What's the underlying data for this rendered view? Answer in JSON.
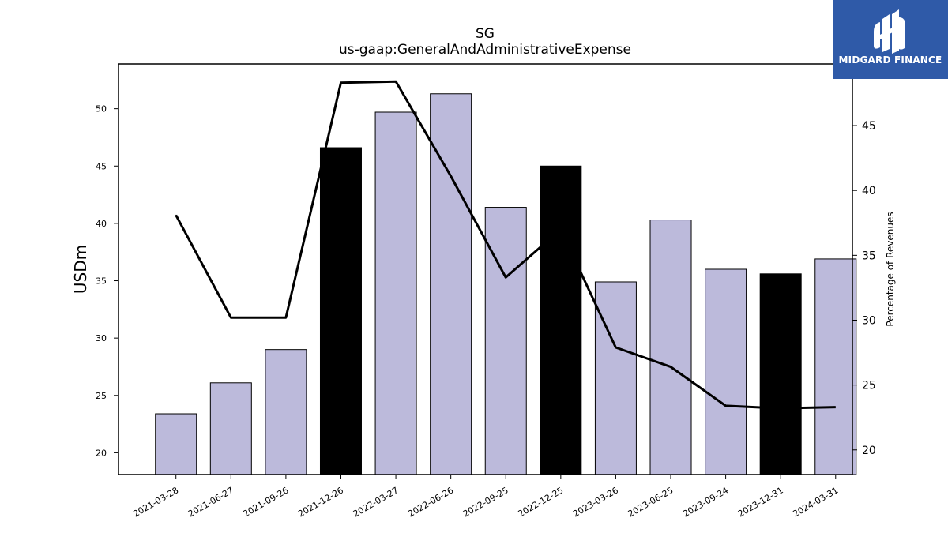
{
  "chart_data": {
    "type": "bar",
    "title": "SG",
    "subtitle": "us-gaap:GeneralAndAdministrativeExpense",
    "ylabel": "USDm",
    "y2label": "Percentage of Revenues",
    "categories": [
      "2021-03-28",
      "2021-06-27",
      "2021-09-26",
      "2021-12-26",
      "2022-03-27",
      "2022-06-26",
      "2022-09-25",
      "2022-12-25",
      "2023-03-26",
      "2023-06-25",
      "2023-09-24",
      "2023-12-31",
      "2024-03-31"
    ],
    "series": [
      {
        "type": "bar",
        "values": [
          23.4,
          26.1,
          29.0,
          46.6,
          49.7,
          51.3,
          41.4,
          45.0,
          34.9,
          40.3,
          36.0,
          35.6,
          36.9
        ],
        "highlighted": [
          false,
          false,
          false,
          true,
          false,
          false,
          false,
          true,
          false,
          false,
          false,
          true,
          false
        ]
      },
      {
        "type": "line",
        "axis": "right",
        "values": [
          38.1,
          30.2,
          30.2,
          48.3,
          48.4,
          41.1,
          33.3,
          37.0,
          27.9,
          26.4,
          23.4,
          23.2,
          23.3
        ]
      }
    ],
    "ylim": [
      18.1,
      53.9
    ],
    "y2lim": [
      18.1,
      49.75
    ],
    "yticks": [
      20,
      25,
      30,
      35,
      40,
      45,
      50
    ],
    "y2ticks": [
      20,
      25,
      30,
      35,
      40,
      45
    ],
    "colors": {
      "bar": "#bcbadb",
      "bar_highlight": "#000000",
      "line": "#000000"
    },
    "grid": false
  },
  "logo": {
    "text": "MIDGARD FINANCE",
    "background": "#2f5aa8"
  }
}
